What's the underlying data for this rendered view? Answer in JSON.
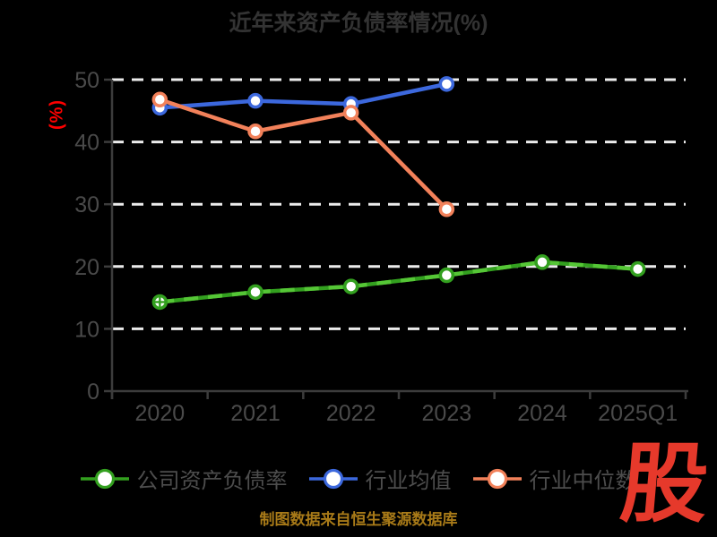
{
  "chart_data": {
    "type": "line",
    "title": "近年来资产负债率情况(%)",
    "ylabel": "(%)",
    "xlabel": "",
    "categories": [
      "2020",
      "2021",
      "2022",
      "2023",
      "2024",
      "2025Q1"
    ],
    "ylim": [
      0,
      50
    ],
    "yticks": [
      0,
      10,
      20,
      30,
      40,
      50
    ],
    "grid": "horizontal-dashed-white",
    "legend_position": "bottom",
    "series": [
      {
        "name": "公司资产负债率",
        "color": "#33a01f",
        "overlay_color": "#55c636",
        "line_style": "solid-with-dashed-overlay",
        "marker": "circle",
        "first_marker": "circle-cross",
        "values": [
          14.3,
          15.9,
          16.8,
          18.6,
          20.7,
          19.6
        ]
      },
      {
        "name": "行业均值",
        "color": "#3c68dd",
        "line_style": "solid",
        "marker": "circle",
        "values": [
          45.5,
          46.6,
          46.1,
          49.3,
          null,
          null
        ]
      },
      {
        "name": "行业中位数",
        "color": "#f2815a",
        "line_style": "solid",
        "marker": "circle",
        "values": [
          46.8,
          41.7,
          44.7,
          29.2,
          null,
          null
        ]
      }
    ]
  },
  "footer": {
    "credit": "制图数据来自恒生聚源数据库"
  },
  "logo": {
    "text": "股"
  },
  "colors": {
    "background": "#000000",
    "title": "#333333",
    "axis_label": "#4a4a4a",
    "axis_line": "#3c3c3c",
    "grid": "#ececec",
    "ylabel": "#ff0000",
    "legend_text": "#4d4d4d",
    "footer_text": "#a87a18",
    "logo": "#e6392b",
    "marker_fill": "#ffffff"
  }
}
